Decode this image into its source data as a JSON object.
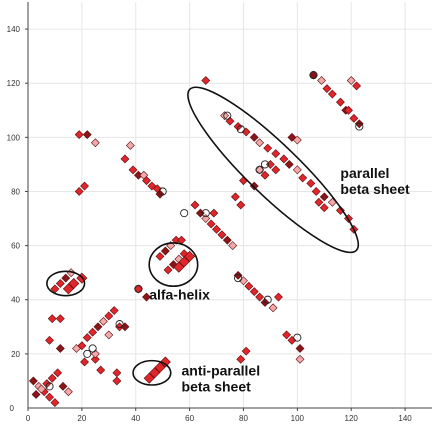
{
  "chart_data": {
    "type": "scatter",
    "title": "",
    "xlabel": "",
    "ylabel": "",
    "xlim": [
      0,
      150
    ],
    "ylim": [
      0,
      150
    ],
    "x_ticks": [
      "0",
      "20",
      "40",
      "60",
      "80",
      "100",
      "120",
      "140"
    ],
    "y_ticks": [
      "0",
      "20",
      "40",
      "60",
      "80",
      "100",
      "120",
      "140"
    ],
    "grid": true,
    "colors": {
      "marker": "#e0262b",
      "marker_dark": "#8a1518",
      "marker_light": "#f3a9a9",
      "outline": "#222222",
      "grid": "#e6e6e6"
    },
    "annotations": [
      {
        "id": "parallel",
        "lines": [
          "parallel",
          "beta sheet"
        ],
        "x": 116,
        "y": 85
      },
      {
        "id": "alfa-helix",
        "lines": [
          "alfa-helix"
        ],
        "x": 45,
        "y": 40
      },
      {
        "id": "anti-parallel",
        "lines": [
          "anti-parallel",
          "beta sheet"
        ],
        "x": 57,
        "y": 12
      }
    ],
    "ellipses": [
      {
        "id": "parallel-beta-sheet",
        "cx": 91,
        "cy": 88,
        "rx": 43,
        "ry": 9.5,
        "angle": 44
      },
      {
        "id": "alfa-helix",
        "cx": 54,
        "cy": 53,
        "rx": 9,
        "ry": 8,
        "angle": 0
      },
      {
        "id": "small-helix",
        "cx": 14,
        "cy": 46,
        "rx": 7,
        "ry": 4.5,
        "angle": 0
      },
      {
        "id": "anti-parallel-beta-sheet",
        "cx": 46,
        "cy": 13,
        "rx": 7,
        "ry": 4.5,
        "angle": 0
      }
    ],
    "series": [
      {
        "shape": "diamond",
        "points": [
          [
            66,
            121
          ],
          [
            106,
            123
          ],
          [
            109,
            121
          ],
          [
            111,
            118
          ],
          [
            113,
            116
          ],
          [
            116,
            113
          ],
          [
            118,
            110
          ],
          [
            120,
            121
          ],
          [
            122,
            119
          ],
          [
            119,
            110
          ],
          [
            121,
            107
          ],
          [
            123,
            105
          ],
          [
            73,
            108
          ],
          [
            75,
            106
          ],
          [
            78,
            104
          ],
          [
            81,
            102
          ],
          [
            84,
            100
          ],
          [
            86,
            98
          ],
          [
            89,
            96
          ],
          [
            92,
            94
          ],
          [
            95,
            92
          ],
          [
            97,
            90
          ],
          [
            100,
            88
          ],
          [
            102,
            85
          ],
          [
            105,
            83
          ],
          [
            107,
            80
          ],
          [
            110,
            78
          ],
          [
            113,
            76
          ],
          [
            116,
            73
          ],
          [
            119,
            70
          ],
          [
            121,
            66
          ],
          [
            98,
            100
          ],
          [
            100,
            99
          ],
          [
            108,
            76
          ],
          [
            110,
            74
          ],
          [
            80,
            84
          ],
          [
            84,
            82
          ],
          [
            86,
            88
          ],
          [
            88,
            86
          ],
          [
            90,
            90
          ],
          [
            92,
            88
          ],
          [
            41,
            86
          ],
          [
            43,
            86
          ],
          [
            44,
            84
          ],
          [
            46,
            82
          ],
          [
            48,
            81
          ],
          [
            49,
            79
          ],
          [
            38,
            97
          ],
          [
            36,
            92
          ],
          [
            39,
            88
          ],
          [
            19,
            101
          ],
          [
            22,
            101
          ],
          [
            25,
            98
          ],
          [
            19,
            80
          ],
          [
            21,
            82
          ],
          [
            62,
            75
          ],
          [
            64,
            72
          ],
          [
            66,
            70
          ],
          [
            68,
            68
          ],
          [
            70,
            66
          ],
          [
            72,
            64
          ],
          [
            74,
            62
          ],
          [
            76,
            60
          ],
          [
            77,
            78
          ],
          [
            79,
            75
          ],
          [
            69,
            72
          ],
          [
            78,
            49
          ],
          [
            80,
            47
          ],
          [
            82,
            45
          ],
          [
            84,
            43
          ],
          [
            86,
            41
          ],
          [
            88,
            39
          ],
          [
            91,
            37
          ],
          [
            93,
            41
          ],
          [
            96,
            27
          ],
          [
            98,
            25
          ],
          [
            101,
            22
          ],
          [
            101,
            18
          ],
          [
            81,
            21
          ],
          [
            79,
            18
          ],
          [
            49,
            56
          ],
          [
            51,
            58
          ],
          [
            53,
            60
          ],
          [
            55,
            62
          ],
          [
            57,
            62
          ],
          [
            52,
            51
          ],
          [
            54,
            53
          ],
          [
            56,
            55
          ],
          [
            58,
            57
          ],
          [
            10,
            44
          ],
          [
            12,
            46
          ],
          [
            14,
            48
          ],
          [
            16,
            50
          ],
          [
            9,
            33
          ],
          [
            12,
            33
          ],
          [
            8,
            25
          ],
          [
            12,
            22
          ],
          [
            18,
            22
          ],
          [
            20,
            23
          ],
          [
            22,
            26
          ],
          [
            24,
            28
          ],
          [
            26,
            30
          ],
          [
            28,
            32
          ],
          [
            30,
            34
          ],
          [
            32,
            36
          ],
          [
            34,
            30
          ],
          [
            36,
            30
          ],
          [
            30,
            27
          ],
          [
            25,
            18
          ],
          [
            27,
            14
          ],
          [
            21,
            17
          ],
          [
            2,
            10
          ],
          [
            4,
            8
          ],
          [
            6,
            6
          ],
          [
            8,
            4
          ],
          [
            10,
            2
          ],
          [
            3,
            5
          ],
          [
            5,
            7
          ],
          [
            7,
            9
          ],
          [
            9,
            11
          ],
          [
            11,
            13
          ],
          [
            13,
            8
          ],
          [
            15,
            6
          ],
          [
            33,
            13
          ],
          [
            33,
            10
          ],
          [
            41,
            44
          ],
          [
            44,
            41
          ],
          [
            25,
            20
          ]
        ]
      },
      {
        "shape": "square",
        "points": [
          [
            15,
            44
          ],
          [
            17,
            46
          ],
          [
            20,
            48
          ],
          [
            56,
            52
          ],
          [
            58,
            54
          ],
          [
            60,
            56
          ],
          [
            45,
            11
          ],
          [
            47,
            13
          ],
          [
            49,
            15
          ],
          [
            51,
            17
          ]
        ]
      },
      {
        "shape": "circle",
        "points": [
          [
            106,
            123
          ],
          [
            123,
            104
          ],
          [
            74,
            108
          ],
          [
            79,
            103
          ],
          [
            88,
            90
          ],
          [
            86,
            88
          ],
          [
            58,
            72
          ],
          [
            66,
            72
          ],
          [
            50,
            80
          ],
          [
            78,
            48
          ],
          [
            24,
            22
          ],
          [
            22,
            20
          ],
          [
            8,
            8
          ],
          [
            34,
            31
          ],
          [
            100,
            26
          ],
          [
            41,
            44
          ],
          [
            89,
            40
          ]
        ]
      }
    ]
  }
}
